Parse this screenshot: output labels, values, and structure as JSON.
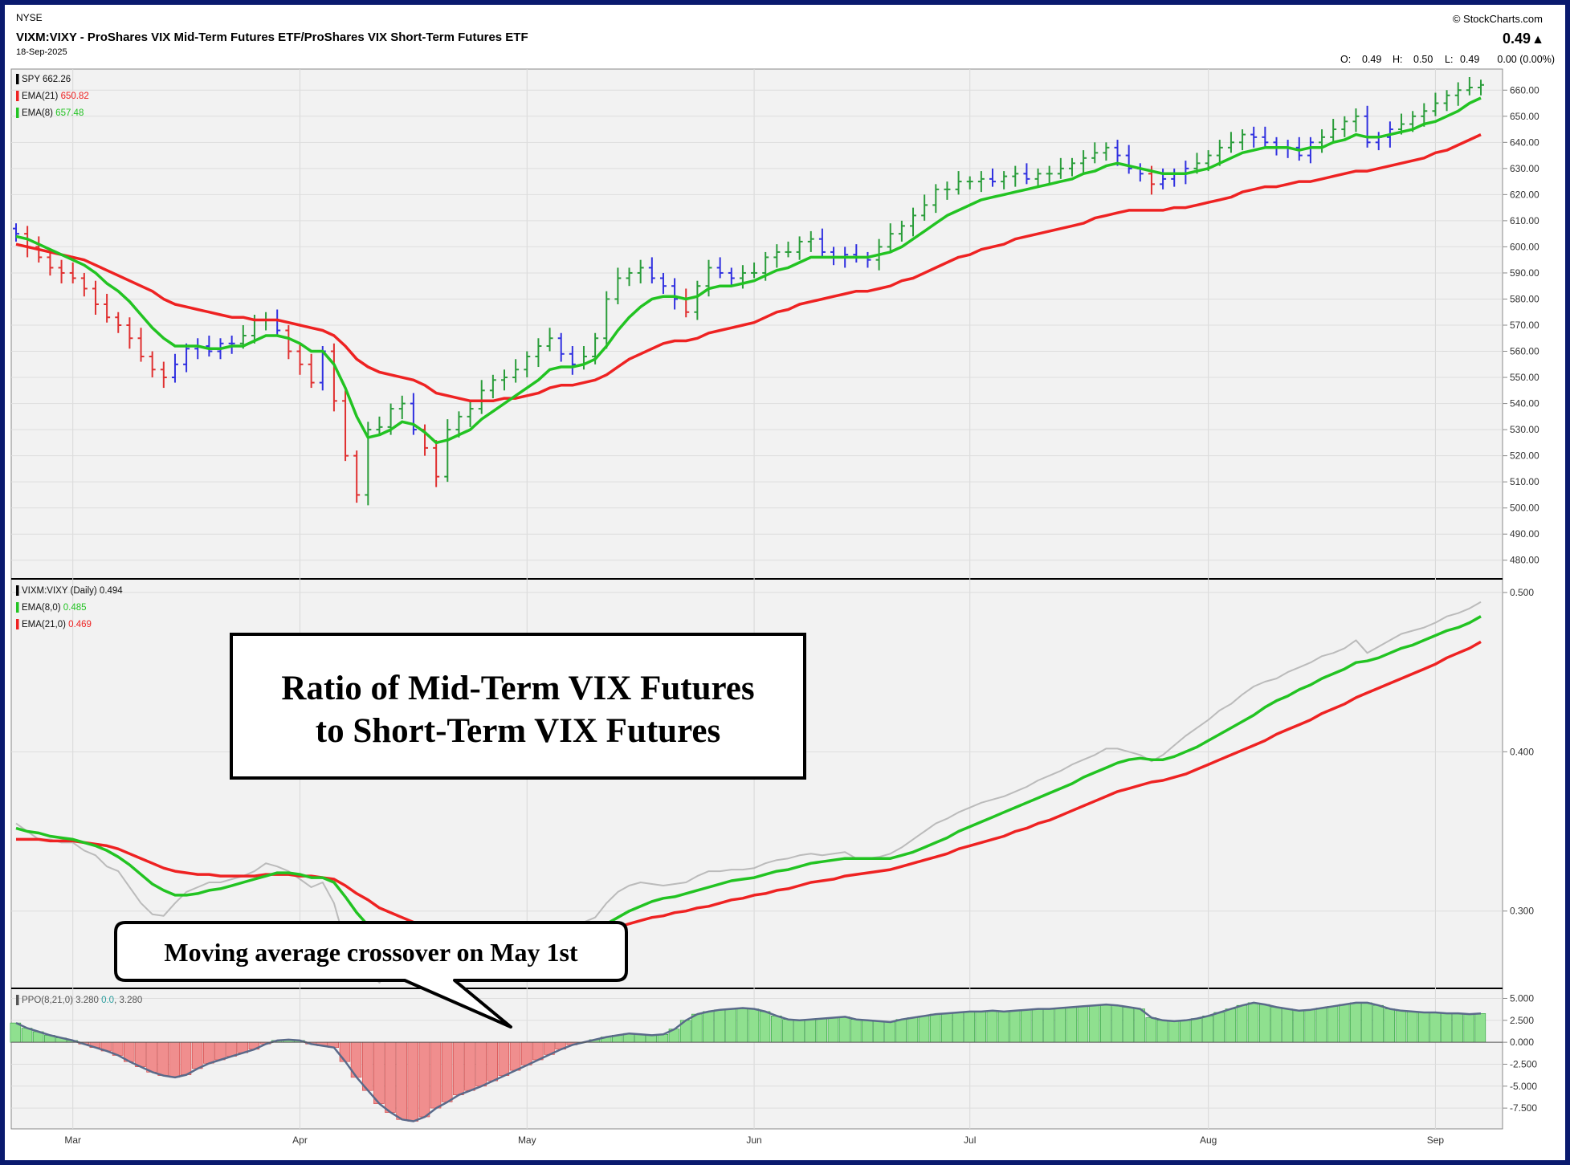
{
  "header": {
    "exchange": "NYSE",
    "title": "VIXM:VIXY - ProShares VIX Mid-Term Futures ETF/ProShares VIX Short-Term Futures ETF",
    "date": "18-Sep-2025",
    "brand": "© StockCharts.com",
    "last_price": "0.49",
    "up_arrow": "▲",
    "ohlc_open_label": "O:",
    "ohlc_open": "0.49",
    "ohlc_high_label": "H:",
    "ohlc_high": "0.50",
    "ohlc_low_label": "L:",
    "ohlc_low": "0.49",
    "change": "0.00 (0.00%)",
    "colors": {
      "up": "#2a9d3a",
      "down": "#e03030",
      "neutral": "#3030e0",
      "ema_fast": "#22c322",
      "ema_slow": "#ee2222",
      "ratio_line": "#bbbbbb"
    }
  },
  "panels": {
    "price": {
      "legend": [
        {
          "label": "SPY",
          "value": "662.26",
          "color": "#000000"
        },
        {
          "label": "EMA(21)",
          "value": "650.82",
          "color": "#ee2222"
        },
        {
          "label": "EMA(8)",
          "value": "657.48",
          "color": "#22c322"
        }
      ]
    },
    "ratio": {
      "legend": [
        {
          "label": "VIXM:VIXY (Daily)",
          "value": "0.494",
          "color": "#000000"
        },
        {
          "label": "EMA(8,0)",
          "value": "0.485",
          "color": "#22c322"
        },
        {
          "label": "EMA(21,0)",
          "value": "0.469",
          "color": "#ee2222"
        }
      ]
    },
    "ppo": {
      "legend": [
        {
          "label": "PPO(8,21,0)",
          "value": "3.280",
          "color": "#555555"
        },
        {
          "label": "",
          "value": "0.0",
          "color": "#2a9d9d"
        },
        {
          "label": "",
          "value": ", 3.280",
          "color": "#555555"
        }
      ]
    }
  },
  "annotations": {
    "ratio_box": [
      "Ratio of Mid-Term VIX Futures",
      "to Short-Term VIX Futures"
    ],
    "crossover_callout": "Moving average crossover on May 1st"
  },
  "chart_data": [
    {
      "type": "ohlc",
      "series_name": "SPY",
      "x_labels": [
        "Mar",
        "Apr",
        "May",
        "Jun",
        "Jul",
        "Aug",
        "Sep"
      ],
      "x_label_day_index": [
        5,
        25,
        45,
        65,
        84,
        105,
        125
      ],
      "ylim": [
        475,
        665
      ],
      "y_ticks": [
        480,
        490,
        500,
        510,
        520,
        530,
        540,
        550,
        560,
        570,
        580,
        590,
        600,
        610,
        620,
        630,
        640,
        650,
        660
      ],
      "y_tick_labels": [
        "480.00",
        "490.00",
        "500.00",
        "510.00",
        "520.00",
        "530.00",
        "540.00",
        "550.00",
        "560.00",
        "570.00",
        "580.00",
        "590.00",
        "600.00",
        "610.00",
        "620.00",
        "630.00",
        "640.00",
        "650.00",
        "660.00"
      ],
      "close": [
        605,
        600,
        596,
        592,
        590,
        588,
        584,
        578,
        573,
        570,
        565,
        558,
        553,
        550,
        555,
        561,
        562,
        560,
        563,
        563,
        566,
        572,
        572,
        568,
        560,
        555,
        548,
        560,
        541,
        520,
        505,
        530,
        531,
        538,
        540,
        530,
        523,
        512,
        530,
        535,
        538,
        545,
        549,
        550,
        553,
        558,
        562,
        565,
        559,
        555,
        558,
        565,
        580,
        588,
        590,
        592,
        588,
        585,
        580,
        575,
        585,
        592,
        590,
        588,
        590,
        590,
        596,
        598,
        598,
        602,
        603,
        598,
        596,
        597,
        596,
        595,
        600,
        605,
        608,
        612,
        616,
        622,
        622,
        625,
        625,
        626,
        625,
        627,
        628,
        626,
        628,
        628,
        630,
        632,
        634,
        636,
        638,
        635,
        630,
        628,
        624,
        626,
        628,
        630,
        632,
        635,
        638,
        640,
        643,
        642,
        640,
        638,
        638,
        635,
        640,
        642,
        645,
        648,
        650,
        640,
        642,
        645,
        647,
        650,
        652,
        655,
        658,
        660,
        661,
        662
      ],
      "ema8": [
        604,
        603,
        601,
        599,
        597,
        595,
        593,
        590,
        586,
        583,
        579,
        574,
        569,
        565,
        562,
        562,
        562,
        561,
        561,
        562,
        562,
        564,
        566,
        566,
        565,
        563,
        560,
        560,
        555,
        546,
        535,
        527,
        528,
        530,
        533,
        532,
        529,
        525,
        526,
        528,
        530,
        534,
        537,
        540,
        543,
        546,
        549,
        553,
        554,
        554,
        555,
        557,
        562,
        568,
        573,
        577,
        580,
        581,
        581,
        580,
        581,
        584,
        585,
        585,
        586,
        587,
        589,
        591,
        592,
        594,
        596,
        596,
        596,
        596,
        596,
        596,
        597,
        598,
        600,
        603,
        606,
        609,
        612,
        614,
        616,
        618,
        619,
        620,
        621,
        622,
        623,
        624,
        625,
        626,
        628,
        629,
        631,
        632,
        631,
        630,
        629,
        628,
        628,
        628,
        629,
        630,
        632,
        634,
        636,
        637,
        638,
        638,
        638,
        637,
        638,
        638,
        640,
        641,
        643,
        642,
        642,
        643,
        644,
        645,
        647,
        648,
        650,
        652,
        655,
        657
      ],
      "ema21": [
        601,
        600,
        599,
        598,
        597,
        596,
        595,
        593,
        591,
        589,
        587,
        585,
        583,
        580,
        578,
        577,
        576,
        575,
        574,
        573,
        573,
        572,
        572,
        572,
        571,
        570,
        569,
        568,
        566,
        562,
        557,
        554,
        552,
        551,
        550,
        549,
        547,
        544,
        543,
        542,
        541,
        541,
        541,
        542,
        542,
        543,
        544,
        546,
        547,
        547,
        548,
        549,
        551,
        554,
        557,
        559,
        561,
        563,
        564,
        564,
        565,
        567,
        568,
        569,
        570,
        571,
        573,
        575,
        576,
        578,
        579,
        580,
        581,
        582,
        583,
        583,
        584,
        585,
        587,
        588,
        590,
        592,
        594,
        596,
        597,
        599,
        600,
        601,
        603,
        604,
        605,
        606,
        607,
        608,
        609,
        611,
        612,
        613,
        614,
        614,
        614,
        614,
        615,
        615,
        616,
        617,
        618,
        619,
        621,
        622,
        623,
        623,
        624,
        625,
        625,
        626,
        627,
        628,
        629,
        629,
        630,
        631,
        632,
        633,
        634,
        636,
        637,
        639,
        641,
        643
      ],
      "up_down_neutral": "bars colored green (up), red (down), blue (neutral)"
    },
    {
      "type": "line",
      "series_name": "VIXM:VIXY (Daily)",
      "ylim": [
        0.255,
        0.505
      ],
      "y_ticks": [
        0.3,
        0.4,
        0.5
      ],
      "y_tick_labels": [
        "0.300",
        "0.400",
        "0.500"
      ],
      "ratio": [
        0.355,
        0.35,
        0.345,
        0.345,
        0.343,
        0.343,
        0.338,
        0.335,
        0.328,
        0.325,
        0.315,
        0.305,
        0.298,
        0.297,
        0.305,
        0.312,
        0.315,
        0.318,
        0.318,
        0.32,
        0.322,
        0.325,
        0.33,
        0.328,
        0.325,
        0.32,
        0.315,
        0.318,
        0.305,
        0.28,
        0.265,
        0.262,
        0.255,
        0.265,
        0.268,
        0.27,
        0.27,
        0.272,
        0.275,
        0.278,
        0.278,
        0.28,
        0.282,
        0.283,
        0.284,
        0.285,
        0.285,
        0.287,
        0.288,
        0.29,
        0.293,
        0.296,
        0.305,
        0.312,
        0.316,
        0.318,
        0.317,
        0.316,
        0.317,
        0.318,
        0.322,
        0.325,
        0.325,
        0.326,
        0.326,
        0.327,
        0.33,
        0.332,
        0.333,
        0.335,
        0.336,
        0.335,
        0.336,
        0.337,
        0.333,
        0.333,
        0.334,
        0.336,
        0.34,
        0.345,
        0.35,
        0.355,
        0.358,
        0.362,
        0.365,
        0.368,
        0.37,
        0.372,
        0.375,
        0.378,
        0.382,
        0.385,
        0.388,
        0.392,
        0.395,
        0.398,
        0.402,
        0.402,
        0.4,
        0.398,
        0.394,
        0.398,
        0.404,
        0.41,
        0.415,
        0.42,
        0.426,
        0.43,
        0.436,
        0.441,
        0.444,
        0.446,
        0.45,
        0.453,
        0.456,
        0.46,
        0.462,
        0.465,
        0.47,
        0.462,
        0.466,
        0.47,
        0.474,
        0.476,
        0.478,
        0.481,
        0.485,
        0.487,
        0.49,
        0.494
      ],
      "ema8": [
        0.352,
        0.35,
        0.349,
        0.347,
        0.346,
        0.345,
        0.343,
        0.341,
        0.338,
        0.334,
        0.329,
        0.323,
        0.317,
        0.313,
        0.31,
        0.31,
        0.311,
        0.313,
        0.314,
        0.316,
        0.318,
        0.32,
        0.322,
        0.324,
        0.324,
        0.323,
        0.321,
        0.321,
        0.318,
        0.309,
        0.299,
        0.291,
        0.283,
        0.279,
        0.277,
        0.276,
        0.275,
        0.275,
        0.275,
        0.276,
        0.277,
        0.278,
        0.279,
        0.28,
        0.281,
        0.282,
        0.283,
        0.284,
        0.285,
        0.286,
        0.287,
        0.289,
        0.292,
        0.296,
        0.3,
        0.303,
        0.306,
        0.308,
        0.309,
        0.311,
        0.313,
        0.315,
        0.317,
        0.319,
        0.32,
        0.321,
        0.323,
        0.325,
        0.326,
        0.328,
        0.33,
        0.331,
        0.332,
        0.333,
        0.333,
        0.333,
        0.333,
        0.333,
        0.335,
        0.337,
        0.34,
        0.343,
        0.346,
        0.35,
        0.353,
        0.356,
        0.359,
        0.362,
        0.365,
        0.368,
        0.371,
        0.374,
        0.377,
        0.38,
        0.384,
        0.387,
        0.39,
        0.393,
        0.395,
        0.396,
        0.395,
        0.395,
        0.397,
        0.4,
        0.403,
        0.407,
        0.411,
        0.415,
        0.419,
        0.423,
        0.428,
        0.432,
        0.435,
        0.439,
        0.442,
        0.446,
        0.449,
        0.452,
        0.456,
        0.457,
        0.459,
        0.462,
        0.465,
        0.467,
        0.47,
        0.473,
        0.476,
        0.478,
        0.481,
        0.485
      ],
      "ema21": [
        0.345,
        0.345,
        0.345,
        0.344,
        0.344,
        0.344,
        0.343,
        0.342,
        0.341,
        0.339,
        0.336,
        0.333,
        0.33,
        0.327,
        0.325,
        0.324,
        0.323,
        0.323,
        0.322,
        0.322,
        0.322,
        0.322,
        0.323,
        0.323,
        0.323,
        0.322,
        0.322,
        0.321,
        0.32,
        0.316,
        0.311,
        0.307,
        0.302,
        0.299,
        0.296,
        0.293,
        0.291,
        0.289,
        0.287,
        0.286,
        0.285,
        0.285,
        0.285,
        0.284,
        0.284,
        0.284,
        0.284,
        0.284,
        0.285,
        0.285,
        0.286,
        0.286,
        0.288,
        0.29,
        0.292,
        0.294,
        0.296,
        0.297,
        0.299,
        0.3,
        0.302,
        0.303,
        0.305,
        0.307,
        0.308,
        0.31,
        0.311,
        0.313,
        0.314,
        0.316,
        0.318,
        0.319,
        0.32,
        0.322,
        0.323,
        0.324,
        0.325,
        0.326,
        0.328,
        0.33,
        0.332,
        0.334,
        0.336,
        0.339,
        0.341,
        0.343,
        0.345,
        0.347,
        0.35,
        0.352,
        0.355,
        0.357,
        0.36,
        0.363,
        0.366,
        0.369,
        0.372,
        0.375,
        0.377,
        0.379,
        0.381,
        0.382,
        0.384,
        0.386,
        0.389,
        0.392,
        0.395,
        0.398,
        0.401,
        0.404,
        0.407,
        0.411,
        0.414,
        0.417,
        0.42,
        0.424,
        0.427,
        0.43,
        0.434,
        0.437,
        0.44,
        0.443,
        0.446,
        0.449,
        0.452,
        0.455,
        0.459,
        0.462,
        0.465,
        0.469
      ]
    },
    {
      "type": "bar",
      "series_name": "PPO(8,21,0)",
      "ylim": [
        -9.5,
        5.5
      ],
      "y_ticks": [
        -7.5,
        -5,
        -2.5,
        0,
        2.5,
        5
      ],
      "y_tick_labels": [
        "-7.500",
        "-5.000",
        "-2.500",
        "0.000",
        "2.500",
        "5.000"
      ],
      "values": [
        2.2,
        1.6,
        1.2,
        0.8,
        0.5,
        0.2,
        -0.2,
        -0.6,
        -1.0,
        -1.5,
        -2.2,
        -2.8,
        -3.4,
        -3.8,
        -4.0,
        -3.7,
        -3.0,
        -2.4,
        -2.0,
        -1.6,
        -1.2,
        -0.8,
        -0.2,
        0.2,
        0.3,
        0.2,
        -0.2,
        -0.4,
        -0.6,
        -2.2,
        -4.0,
        -5.5,
        -7.0,
        -8.0,
        -8.8,
        -9.0,
        -8.5,
        -7.5,
        -6.8,
        -6.0,
        -5.5,
        -5.0,
        -4.4,
        -3.8,
        -3.2,
        -2.6,
        -2.0,
        -1.4,
        -0.8,
        -0.3,
        0.0,
        0.3,
        0.6,
        0.8,
        1.0,
        0.9,
        0.8,
        0.9,
        1.5,
        2.5,
        3.2,
        3.5,
        3.7,
        3.8,
        3.9,
        3.8,
        3.5,
        3.0,
        2.6,
        2.5,
        2.6,
        2.7,
        2.8,
        2.9,
        2.6,
        2.5,
        2.4,
        2.3,
        2.6,
        2.8,
        3.0,
        3.2,
        3.3,
        3.4,
        3.5,
        3.5,
        3.6,
        3.5,
        3.6,
        3.7,
        3.8,
        3.8,
        3.9,
        4.0,
        4.1,
        4.2,
        4.3,
        4.2,
        4.0,
        3.8,
        2.8,
        2.5,
        2.4,
        2.5,
        2.7,
        3.0,
        3.4,
        3.8,
        4.2,
        4.5,
        4.3,
        4.0,
        3.8,
        3.6,
        3.7,
        3.9,
        4.1,
        4.3,
        4.5,
        4.5,
        4.2,
        3.8,
        3.6,
        3.5,
        3.4,
        3.4,
        3.3,
        3.3,
        3.2,
        3.28
      ]
    }
  ]
}
